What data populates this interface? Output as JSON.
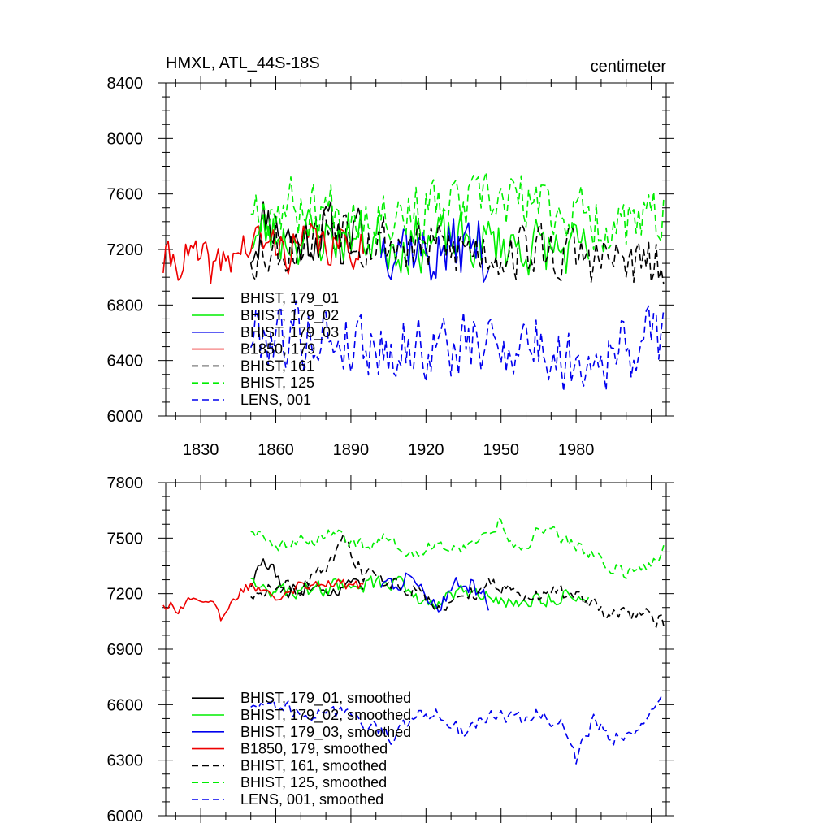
{
  "chart_data": [
    {
      "type": "line",
      "title_left": "HMXL, ATL_44S-18S",
      "title_right": "centimeter",
      "xlim": [
        1816,
        2016
      ],
      "ylim": [
        6000,
        8400
      ],
      "x_tick_labels": [
        1830,
        1860,
        1890,
        1920,
        1950,
        1980
      ],
      "y_tick_labels": [
        6000,
        6400,
        6800,
        7200,
        7600,
        8000,
        8400
      ],
      "grid": false,
      "legend_position": "bottom-left",
      "series": [
        {
          "name": "BHIST, 179_01",
          "color": "#000000",
          "dash": "solid",
          "x_range": [
            1850,
            1895
          ],
          "seed": 11,
          "anchors": [
            [
              1850,
              7200
            ],
            [
              1856,
              7450
            ],
            [
              1862,
              7350
            ],
            [
              1868,
              7250
            ],
            [
              1874,
              7300
            ],
            [
              1880,
              7350
            ],
            [
              1886,
              7250
            ],
            [
              1892,
              7300
            ],
            [
              1895,
              7250
            ]
          ],
          "amp": 190
        },
        {
          "name": "BHIST, 179_02",
          "color": "#00ee00",
          "dash": "solid",
          "x_range": [
            1850,
            1985
          ],
          "seed": 23,
          "anchors": [
            [
              1850,
              7300
            ],
            [
              1870,
              7300
            ],
            [
              1890,
              7300
            ],
            [
              1910,
              7250
            ],
            [
              1930,
              7250
            ],
            [
              1950,
              7250
            ],
            [
              1970,
              7200
            ],
            [
              1985,
              7150
            ]
          ],
          "amp": 190
        },
        {
          "name": "BHIST, 179_03",
          "color": "#0000ee",
          "dash": "solid",
          "x_range": [
            1902,
            1945
          ],
          "seed": 37,
          "anchors": [
            [
              1902,
              7250
            ],
            [
              1910,
              7300
            ],
            [
              1920,
              7150
            ],
            [
              1930,
              7200
            ],
            [
              1940,
              7250
            ],
            [
              1945,
              7150
            ]
          ],
          "amp": 220
        },
        {
          "name": "B1850, 179",
          "color": "#ee0000",
          "dash": "solid",
          "x_range": [
            1815,
            1895
          ],
          "seed": 41,
          "anchors": [
            [
              1815,
              7100
            ],
            [
              1825,
              7150
            ],
            [
              1835,
              7050
            ],
            [
              1845,
              7200
            ],
            [
              1855,
              7250
            ],
            [
              1865,
              7200
            ],
            [
              1875,
              7250
            ],
            [
              1885,
              7200
            ],
            [
              1895,
              7250
            ]
          ],
          "amp": 140
        },
        {
          "name": "BHIST, 161",
          "color": "#000000",
          "dash": "dashed",
          "x_range": [
            1850,
            2015
          ],
          "seed": 53,
          "anchors": [
            [
              1850,
              7200
            ],
            [
              1870,
              7250
            ],
            [
              1885,
              7450
            ],
            [
              1895,
              7300
            ],
            [
              1920,
              7200
            ],
            [
              1940,
              7200
            ],
            [
              1960,
              7200
            ],
            [
              1980,
              7150
            ],
            [
              2000,
              7100
            ],
            [
              2015,
              7050
            ]
          ],
          "amp": 200
        },
        {
          "name": "BHIST, 125",
          "color": "#00ee00",
          "dash": "dashed",
          "x_range": [
            1850,
            2015
          ],
          "seed": 67,
          "anchors": [
            [
              1850,
              7550
            ],
            [
              1870,
              7500
            ],
            [
              1890,
              7500
            ],
            [
              1910,
              7480
            ],
            [
              1930,
              7500
            ],
            [
              1955,
              7550
            ],
            [
              1970,
              7500
            ],
            [
              1990,
              7400
            ],
            [
              2005,
              7350
            ],
            [
              2015,
              7450
            ]
          ],
          "amp": 200
        },
        {
          "name": "LENS, 001",
          "color": "#0000ee",
          "dash": "dashed",
          "x_range": [
            1850,
            2015
          ],
          "seed": 79,
          "anchors": [
            [
              1850,
              6600
            ],
            [
              1870,
              6600
            ],
            [
              1890,
              6550
            ],
            [
              1905,
              6500
            ],
            [
              1920,
              6500
            ],
            [
              1940,
              6500
            ],
            [
              1960,
              6550
            ],
            [
              1975,
              6400
            ],
            [
              1990,
              6450
            ],
            [
              2005,
              6500
            ],
            [
              2015,
              6600
            ]
          ],
          "amp": 230
        }
      ]
    },
    {
      "type": "line",
      "xlim": [
        1816,
        2016
      ],
      "ylim": [
        6000,
        7800
      ],
      "y_tick_labels": [
        6000,
        6300,
        6600,
        6900,
        7200,
        7500,
        7800
      ],
      "grid": false,
      "legend_position": "bottom-left",
      "series": [
        {
          "name": "BHIST, 179_01, smoothed",
          "color": "#000000",
          "dash": "solid",
          "x_range": [
            1850,
            1895
          ],
          "seed": 111,
          "anchors": [
            [
              1850,
              7250
            ],
            [
              1855,
              7380
            ],
            [
              1860,
              7300
            ],
            [
              1865,
              7200
            ],
            [
              1870,
              7230
            ],
            [
              1875,
              7260
            ],
            [
              1880,
              7200
            ],
            [
              1885,
              7230
            ],
            [
              1890,
              7250
            ],
            [
              1895,
              7260
            ]
          ],
          "amp": 35
        },
        {
          "name": "BHIST, 179_02, smoothed",
          "color": "#00ee00",
          "dash": "solid",
          "x_range": [
            1850,
            1985
          ],
          "seed": 123,
          "anchors": [
            [
              1850,
              7300
            ],
            [
              1860,
              7200
            ],
            [
              1880,
              7230
            ],
            [
              1895,
              7250
            ],
            [
              1910,
              7260
            ],
            [
              1920,
              7150
            ],
            [
              1935,
              7200
            ],
            [
              1950,
              7160
            ],
            [
              1965,
              7160
            ],
            [
              1975,
              7200
            ],
            [
              1985,
              7150
            ]
          ],
          "amp": 40
        },
        {
          "name": "BHIST, 179_03, smoothed",
          "color": "#0000ee",
          "dash": "solid",
          "x_range": [
            1902,
            1945
          ],
          "seed": 137,
          "anchors": [
            [
              1902,
              7250
            ],
            [
              1910,
              7260
            ],
            [
              1915,
              7300
            ],
            [
              1920,
              7200
            ],
            [
              1925,
              7150
            ],
            [
              1932,
              7250
            ],
            [
              1938,
              7250
            ],
            [
              1945,
              7150
            ]
          ],
          "amp": 45
        },
        {
          "name": "B1850, 179, smoothed",
          "color": "#ee0000",
          "dash": "solid",
          "x_range": [
            1815,
            1895
          ],
          "seed": 141,
          "anchors": [
            [
              1815,
              7150
            ],
            [
              1822,
              7120
            ],
            [
              1828,
              7200
            ],
            [
              1834,
              7150
            ],
            [
              1838,
              7050
            ],
            [
              1845,
              7200
            ],
            [
              1850,
              7250
            ],
            [
              1860,
              7200
            ],
            [
              1870,
              7250
            ],
            [
              1880,
              7270
            ],
            [
              1890,
              7230
            ],
            [
              1895,
              7260
            ]
          ],
          "amp": 30
        },
        {
          "name": "BHIST, 161, smoothed",
          "color": "#000000",
          "dash": "dashed",
          "x_range": [
            1850,
            2015
          ],
          "seed": 153,
          "anchors": [
            [
              1850,
              7200
            ],
            [
              1860,
              7250
            ],
            [
              1870,
              7220
            ],
            [
              1880,
              7330
            ],
            [
              1887,
              7480
            ],
            [
              1895,
              7300
            ],
            [
              1910,
              7250
            ],
            [
              1925,
              7150
            ],
            [
              1935,
              7170
            ],
            [
              1945,
              7250
            ],
            [
              1960,
              7200
            ],
            [
              1980,
              7200
            ],
            [
              1995,
              7080
            ],
            [
              2005,
              7100
            ],
            [
              2015,
              7050
            ]
          ],
          "amp": 40
        },
        {
          "name": "BHIST, 125, smoothed",
          "color": "#00ee00",
          "dash": "dashed",
          "x_range": [
            1850,
            2015
          ],
          "seed": 167,
          "anchors": [
            [
              1850,
              7550
            ],
            [
              1860,
              7460
            ],
            [
              1870,
              7480
            ],
            [
              1885,
              7530
            ],
            [
              1895,
              7460
            ],
            [
              1905,
              7500
            ],
            [
              1915,
              7420
            ],
            [
              1925,
              7470
            ],
            [
              1935,
              7450
            ],
            [
              1950,
              7600
            ],
            [
              1957,
              7420
            ],
            [
              1965,
              7550
            ],
            [
              1975,
              7500
            ],
            [
              1990,
              7380
            ],
            [
              2000,
              7300
            ],
            [
              2008,
              7350
            ],
            [
              2015,
              7450
            ]
          ],
          "amp": 35
        },
        {
          "name": "LENS, 001, smoothed",
          "color": "#0000ee",
          "dash": "dashed",
          "x_range": [
            1850,
            2015
          ],
          "seed": 179,
          "anchors": [
            [
              1850,
              6600
            ],
            [
              1860,
              6600
            ],
            [
              1870,
              6560
            ],
            [
              1880,
              6550
            ],
            [
              1890,
              6550
            ],
            [
              1900,
              6480
            ],
            [
              1907,
              6400
            ],
            [
              1915,
              6550
            ],
            [
              1925,
              6550
            ],
            [
              1935,
              6450
            ],
            [
              1945,
              6560
            ],
            [
              1955,
              6520
            ],
            [
              1965,
              6550
            ],
            [
              1975,
              6480
            ],
            [
              1980,
              6300
            ],
            [
              1987,
              6520
            ],
            [
              1995,
              6420
            ],
            [
              2005,
              6480
            ],
            [
              2015,
              6620
            ]
          ],
          "amp": 35
        }
      ]
    }
  ]
}
